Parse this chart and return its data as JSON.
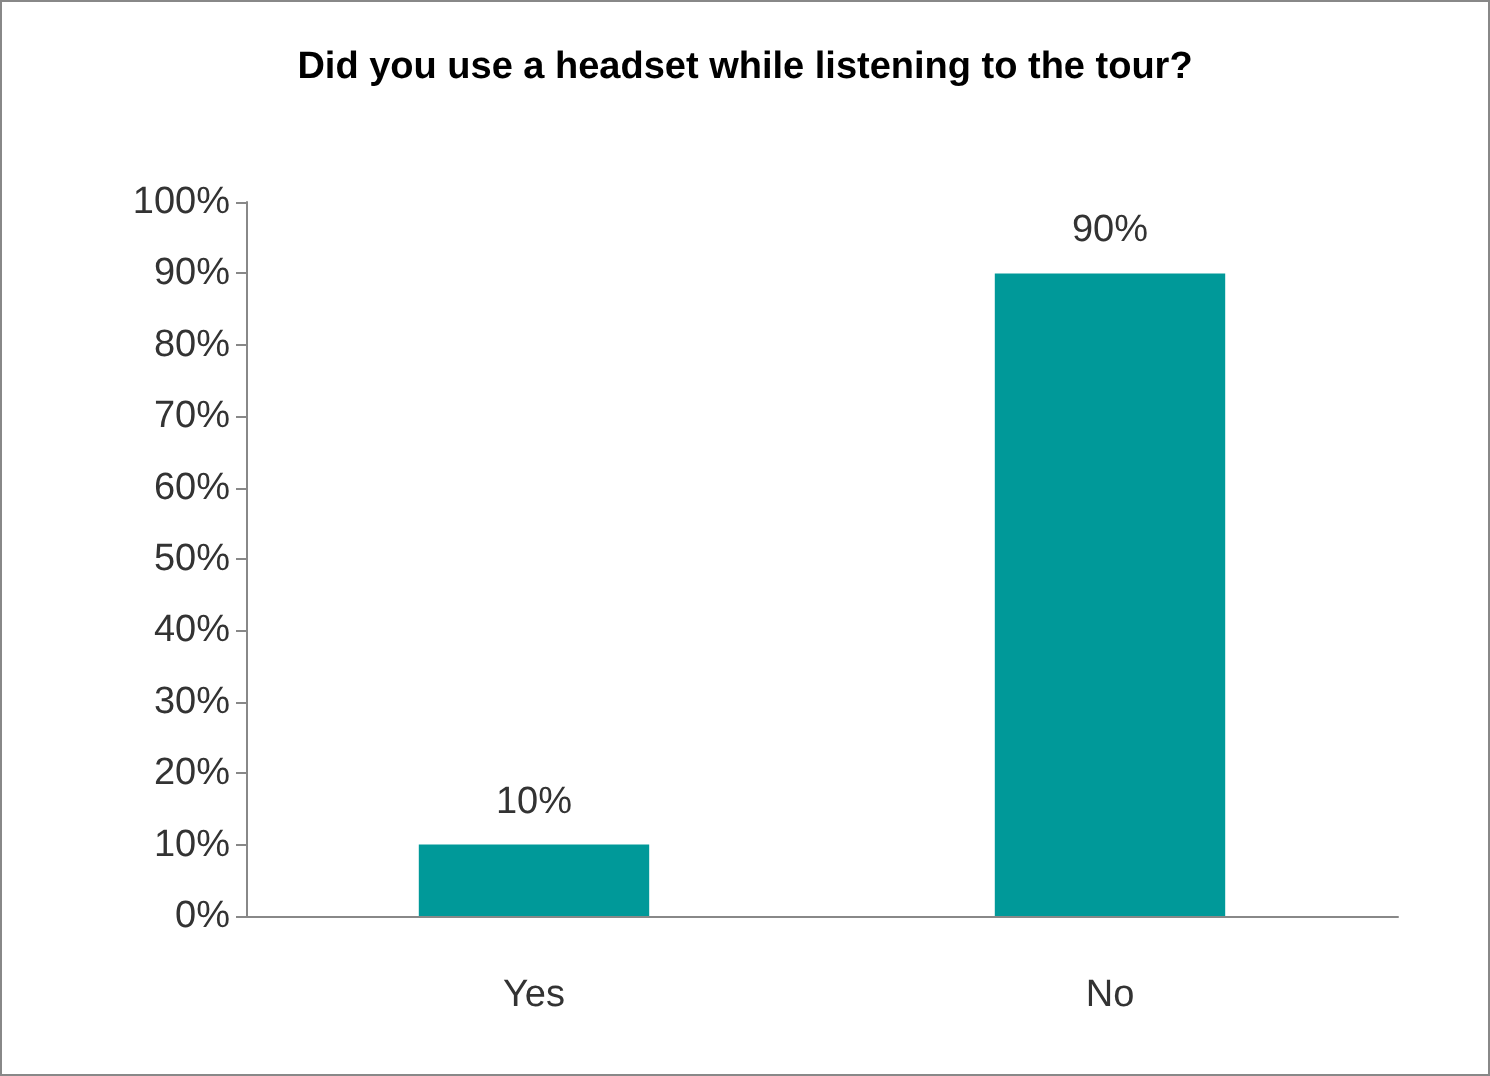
{
  "chart_data": {
    "type": "bar",
    "title": "Did you use a headset while listening to the tour?",
    "categories": [
      "Yes",
      "No"
    ],
    "values": [
      10,
      90
    ],
    "value_labels": [
      "10%",
      "90%"
    ],
    "color": "#009999",
    "ylim": [
      0,
      100
    ],
    "yticks": [
      {
        "value": 0,
        "label": "0%"
      },
      {
        "value": 10,
        "label": "10%"
      },
      {
        "value": 20,
        "label": "20%"
      },
      {
        "value": 30,
        "label": "30%"
      },
      {
        "value": 40,
        "label": "40%"
      },
      {
        "value": 50,
        "label": "50%"
      },
      {
        "value": 60,
        "label": "60%"
      },
      {
        "value": 70,
        "label": "70%"
      },
      {
        "value": 80,
        "label": "80%"
      },
      {
        "value": 90,
        "label": "90%"
      },
      {
        "value": 100,
        "label": "100%"
      }
    ],
    "grid": false
  }
}
